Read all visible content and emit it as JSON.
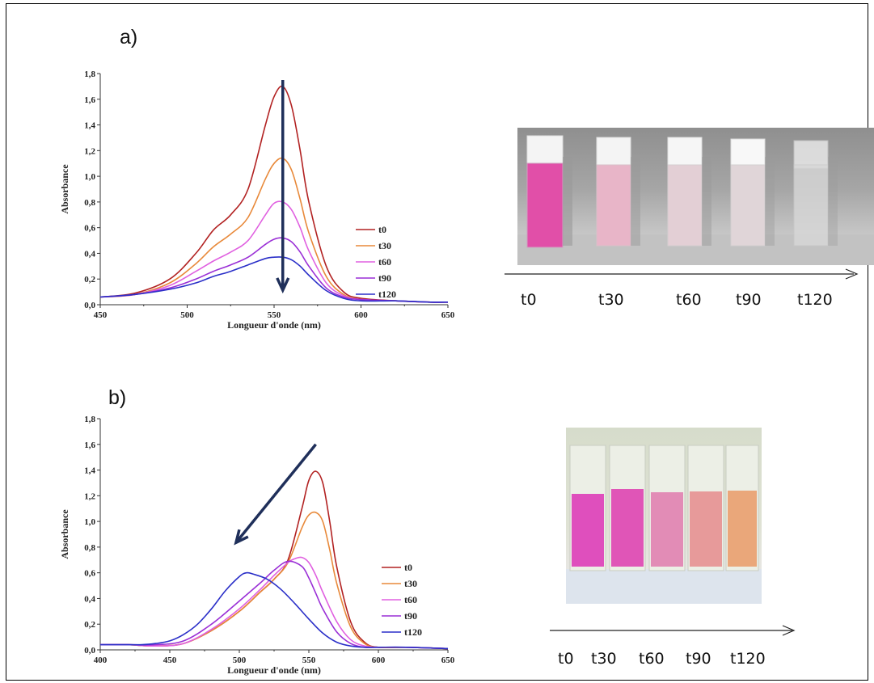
{
  "panels": {
    "a": {
      "label": "a)"
    },
    "b": {
      "label": "b)"
    }
  },
  "photo_a_labels": [
    "t0",
    "t30",
    "t60",
    "t90",
    "t120"
  ],
  "photo_b_labels": [
    "t0",
    "t30",
    "t60",
    "t90",
    "t120"
  ],
  "colors": {
    "t0": "#b22222",
    "t30": "#e8893a",
    "t60": "#e060e0",
    "t90": "#9a2fd6",
    "t120": "#2a2fc8",
    "arrow": "#1f2f5a"
  },
  "chart_data": [
    {
      "type": "line",
      "panel": "a",
      "xlabel": "Longueur d'onde (nm)",
      "ylabel": "Absorbance",
      "xlim": [
        450,
        650
      ],
      "ylim": [
        0.0,
        1.8
      ],
      "xticks": [
        "450",
        "500",
        "550",
        "600",
        "650"
      ],
      "yticks": [
        "0,0",
        "0,2",
        "0,4",
        "0,6",
        "0,8",
        "1,0",
        "1,2",
        "1,4",
        "1,6",
        "1,8"
      ],
      "legend_position": "right",
      "series": [
        {
          "name": "t0",
          "x": [
            450,
            470,
            490,
            505,
            515,
            525,
            535,
            545,
            550,
            555,
            560,
            565,
            570,
            580,
            590,
            600,
            620,
            640,
            650
          ],
          "y": [
            0.06,
            0.09,
            0.2,
            0.4,
            0.58,
            0.7,
            0.9,
            1.4,
            1.62,
            1.7,
            1.55,
            1.2,
            0.8,
            0.3,
            0.1,
            0.05,
            0.03,
            0.02,
            0.02
          ]
        },
        {
          "name": "t30",
          "x": [
            450,
            470,
            490,
            505,
            515,
            525,
            535,
            545,
            550,
            555,
            560,
            565,
            570,
            580,
            590,
            600,
            620,
            640,
            650
          ],
          "y": [
            0.06,
            0.08,
            0.17,
            0.32,
            0.45,
            0.55,
            0.68,
            0.98,
            1.1,
            1.14,
            1.05,
            0.82,
            0.56,
            0.22,
            0.08,
            0.04,
            0.03,
            0.02,
            0.02
          ]
        },
        {
          "name": "t60",
          "x": [
            450,
            470,
            490,
            505,
            515,
            525,
            535,
            545,
            550,
            555,
            560,
            565,
            570,
            580,
            590,
            600,
            620,
            640,
            650
          ],
          "y": [
            0.06,
            0.08,
            0.15,
            0.26,
            0.34,
            0.41,
            0.5,
            0.7,
            0.79,
            0.8,
            0.74,
            0.6,
            0.42,
            0.17,
            0.07,
            0.04,
            0.03,
            0.02,
            0.02
          ]
        },
        {
          "name": "t90",
          "x": [
            450,
            470,
            490,
            505,
            515,
            525,
            535,
            545,
            550,
            555,
            560,
            565,
            570,
            580,
            590,
            600,
            620,
            640,
            650
          ],
          "y": [
            0.06,
            0.08,
            0.13,
            0.2,
            0.26,
            0.31,
            0.37,
            0.47,
            0.51,
            0.52,
            0.49,
            0.41,
            0.3,
            0.13,
            0.06,
            0.04,
            0.03,
            0.02,
            0.02
          ]
        },
        {
          "name": "t120",
          "x": [
            450,
            470,
            490,
            505,
            515,
            525,
            535,
            545,
            550,
            555,
            560,
            565,
            570,
            580,
            590,
            600,
            620,
            640,
            650
          ],
          "y": [
            0.06,
            0.08,
            0.12,
            0.17,
            0.22,
            0.26,
            0.31,
            0.36,
            0.37,
            0.37,
            0.35,
            0.3,
            0.23,
            0.11,
            0.05,
            0.03,
            0.03,
            0.02,
            0.02
          ]
        }
      ]
    },
    {
      "type": "line",
      "panel": "b",
      "xlabel": "Longueur d'onde (nm)",
      "ylabel": "Absorbance",
      "xlim": [
        400,
        650
      ],
      "ylim": [
        0.0,
        1.8
      ],
      "xticks": [
        "400",
        "450",
        "500",
        "550",
        "600",
        "650"
      ],
      "yticks": [
        "0,0",
        "0,2",
        "0,4",
        "0,6",
        "0,8",
        "1,0",
        "1,2",
        "1,4",
        "1,6",
        "1,8"
      ],
      "legend_position": "right",
      "series": [
        {
          "name": "t0",
          "x": [
            400,
            420,
            440,
            460,
            480,
            500,
            515,
            525,
            535,
            545,
            550,
            555,
            560,
            565,
            570,
            580,
            590,
            600,
            620,
            650
          ],
          "y": [
            0.04,
            0.04,
            0.03,
            0.05,
            0.15,
            0.3,
            0.45,
            0.55,
            0.7,
            1.1,
            1.32,
            1.39,
            1.3,
            1.0,
            0.65,
            0.22,
            0.06,
            0.02,
            0.02,
            0.01
          ]
        },
        {
          "name": "t30",
          "x": [
            400,
            420,
            440,
            460,
            480,
            500,
            515,
            525,
            535,
            545,
            550,
            555,
            560,
            565,
            570,
            580,
            590,
            600,
            620,
            650
          ],
          "y": [
            0.04,
            0.04,
            0.03,
            0.05,
            0.15,
            0.3,
            0.45,
            0.55,
            0.68,
            0.95,
            1.05,
            1.07,
            1.0,
            0.78,
            0.52,
            0.18,
            0.05,
            0.02,
            0.02,
            0.01
          ]
        },
        {
          "name": "t60",
          "x": [
            400,
            420,
            440,
            460,
            480,
            500,
            515,
            525,
            535,
            540,
            545,
            550,
            555,
            560,
            570,
            580,
            590,
            600,
            620,
            650
          ],
          "y": [
            0.04,
            0.04,
            0.03,
            0.05,
            0.16,
            0.32,
            0.47,
            0.58,
            0.68,
            0.71,
            0.72,
            0.68,
            0.58,
            0.45,
            0.22,
            0.08,
            0.03,
            0.02,
            0.02,
            0.01
          ]
        },
        {
          "name": "t90",
          "x": [
            400,
            420,
            440,
            460,
            480,
            500,
            515,
            525,
            535,
            545,
            550,
            555,
            560,
            570,
            580,
            590,
            600,
            620,
            650
          ],
          "y": [
            0.04,
            0.04,
            0.04,
            0.07,
            0.2,
            0.38,
            0.52,
            0.62,
            0.69,
            0.65,
            0.56,
            0.44,
            0.32,
            0.14,
            0.05,
            0.02,
            0.02,
            0.02,
            0.01
          ]
        },
        {
          "name": "t120",
          "x": [
            400,
            420,
            430,
            440,
            450,
            460,
            470,
            480,
            490,
            500,
            505,
            510,
            520,
            530,
            540,
            550,
            560,
            570,
            580,
            590,
            600,
            620,
            650
          ],
          "y": [
            0.04,
            0.04,
            0.04,
            0.05,
            0.07,
            0.12,
            0.2,
            0.32,
            0.46,
            0.57,
            0.6,
            0.59,
            0.55,
            0.47,
            0.36,
            0.24,
            0.13,
            0.06,
            0.03,
            0.02,
            0.02,
            0.02,
            0.01
          ]
        }
      ]
    }
  ]
}
